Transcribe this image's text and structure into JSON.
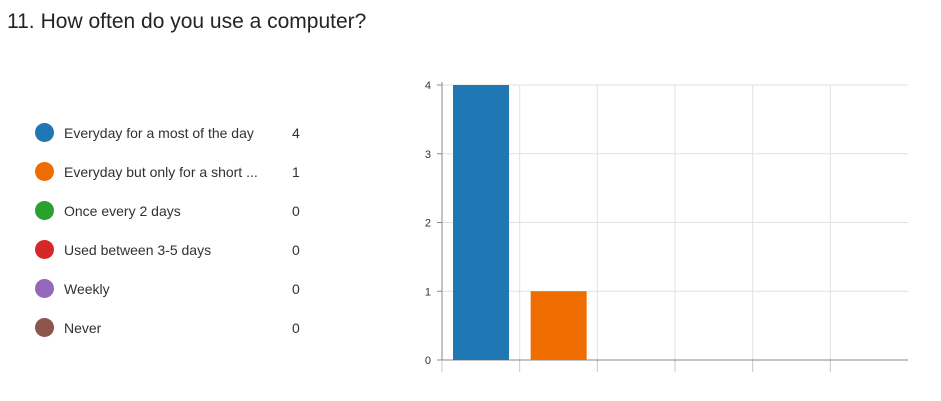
{
  "question": {
    "number": "11.",
    "text": "How often do you use a computer?"
  },
  "legend": [
    {
      "label": "Everyday for a most of the day",
      "count": "4",
      "color": "#1f77b4"
    },
    {
      "label": "Everyday but only for a short ...",
      "count": "1",
      "color": "#ef6c00"
    },
    {
      "label": "Once every 2 days",
      "count": "0",
      "color": "#2ca02c"
    },
    {
      "label": "Used between 3-5 days",
      "count": "0",
      "color": "#d62728"
    },
    {
      "label": "Weekly",
      "count": "0",
      "color": "#9467bd"
    },
    {
      "label": "Never",
      "count": "0",
      "color": "#8c564b"
    }
  ],
  "chart_data": {
    "type": "bar",
    "categories": [
      "Everyday for a most of the day",
      "Everyday but only for a short ...",
      "Once every 2 days",
      "Used between 3-5 days",
      "Weekly",
      "Never"
    ],
    "values": [
      4,
      1,
      0,
      0,
      0,
      0
    ],
    "colors": [
      "#1f77b4",
      "#ef6c00",
      "#2ca02c",
      "#d62728",
      "#9467bd",
      "#8c564b"
    ],
    "ylim": [
      0,
      4
    ],
    "yticks": [
      "0",
      "1",
      "2",
      "3",
      "4"
    ],
    "grid": true,
    "legend_position": "left"
  }
}
